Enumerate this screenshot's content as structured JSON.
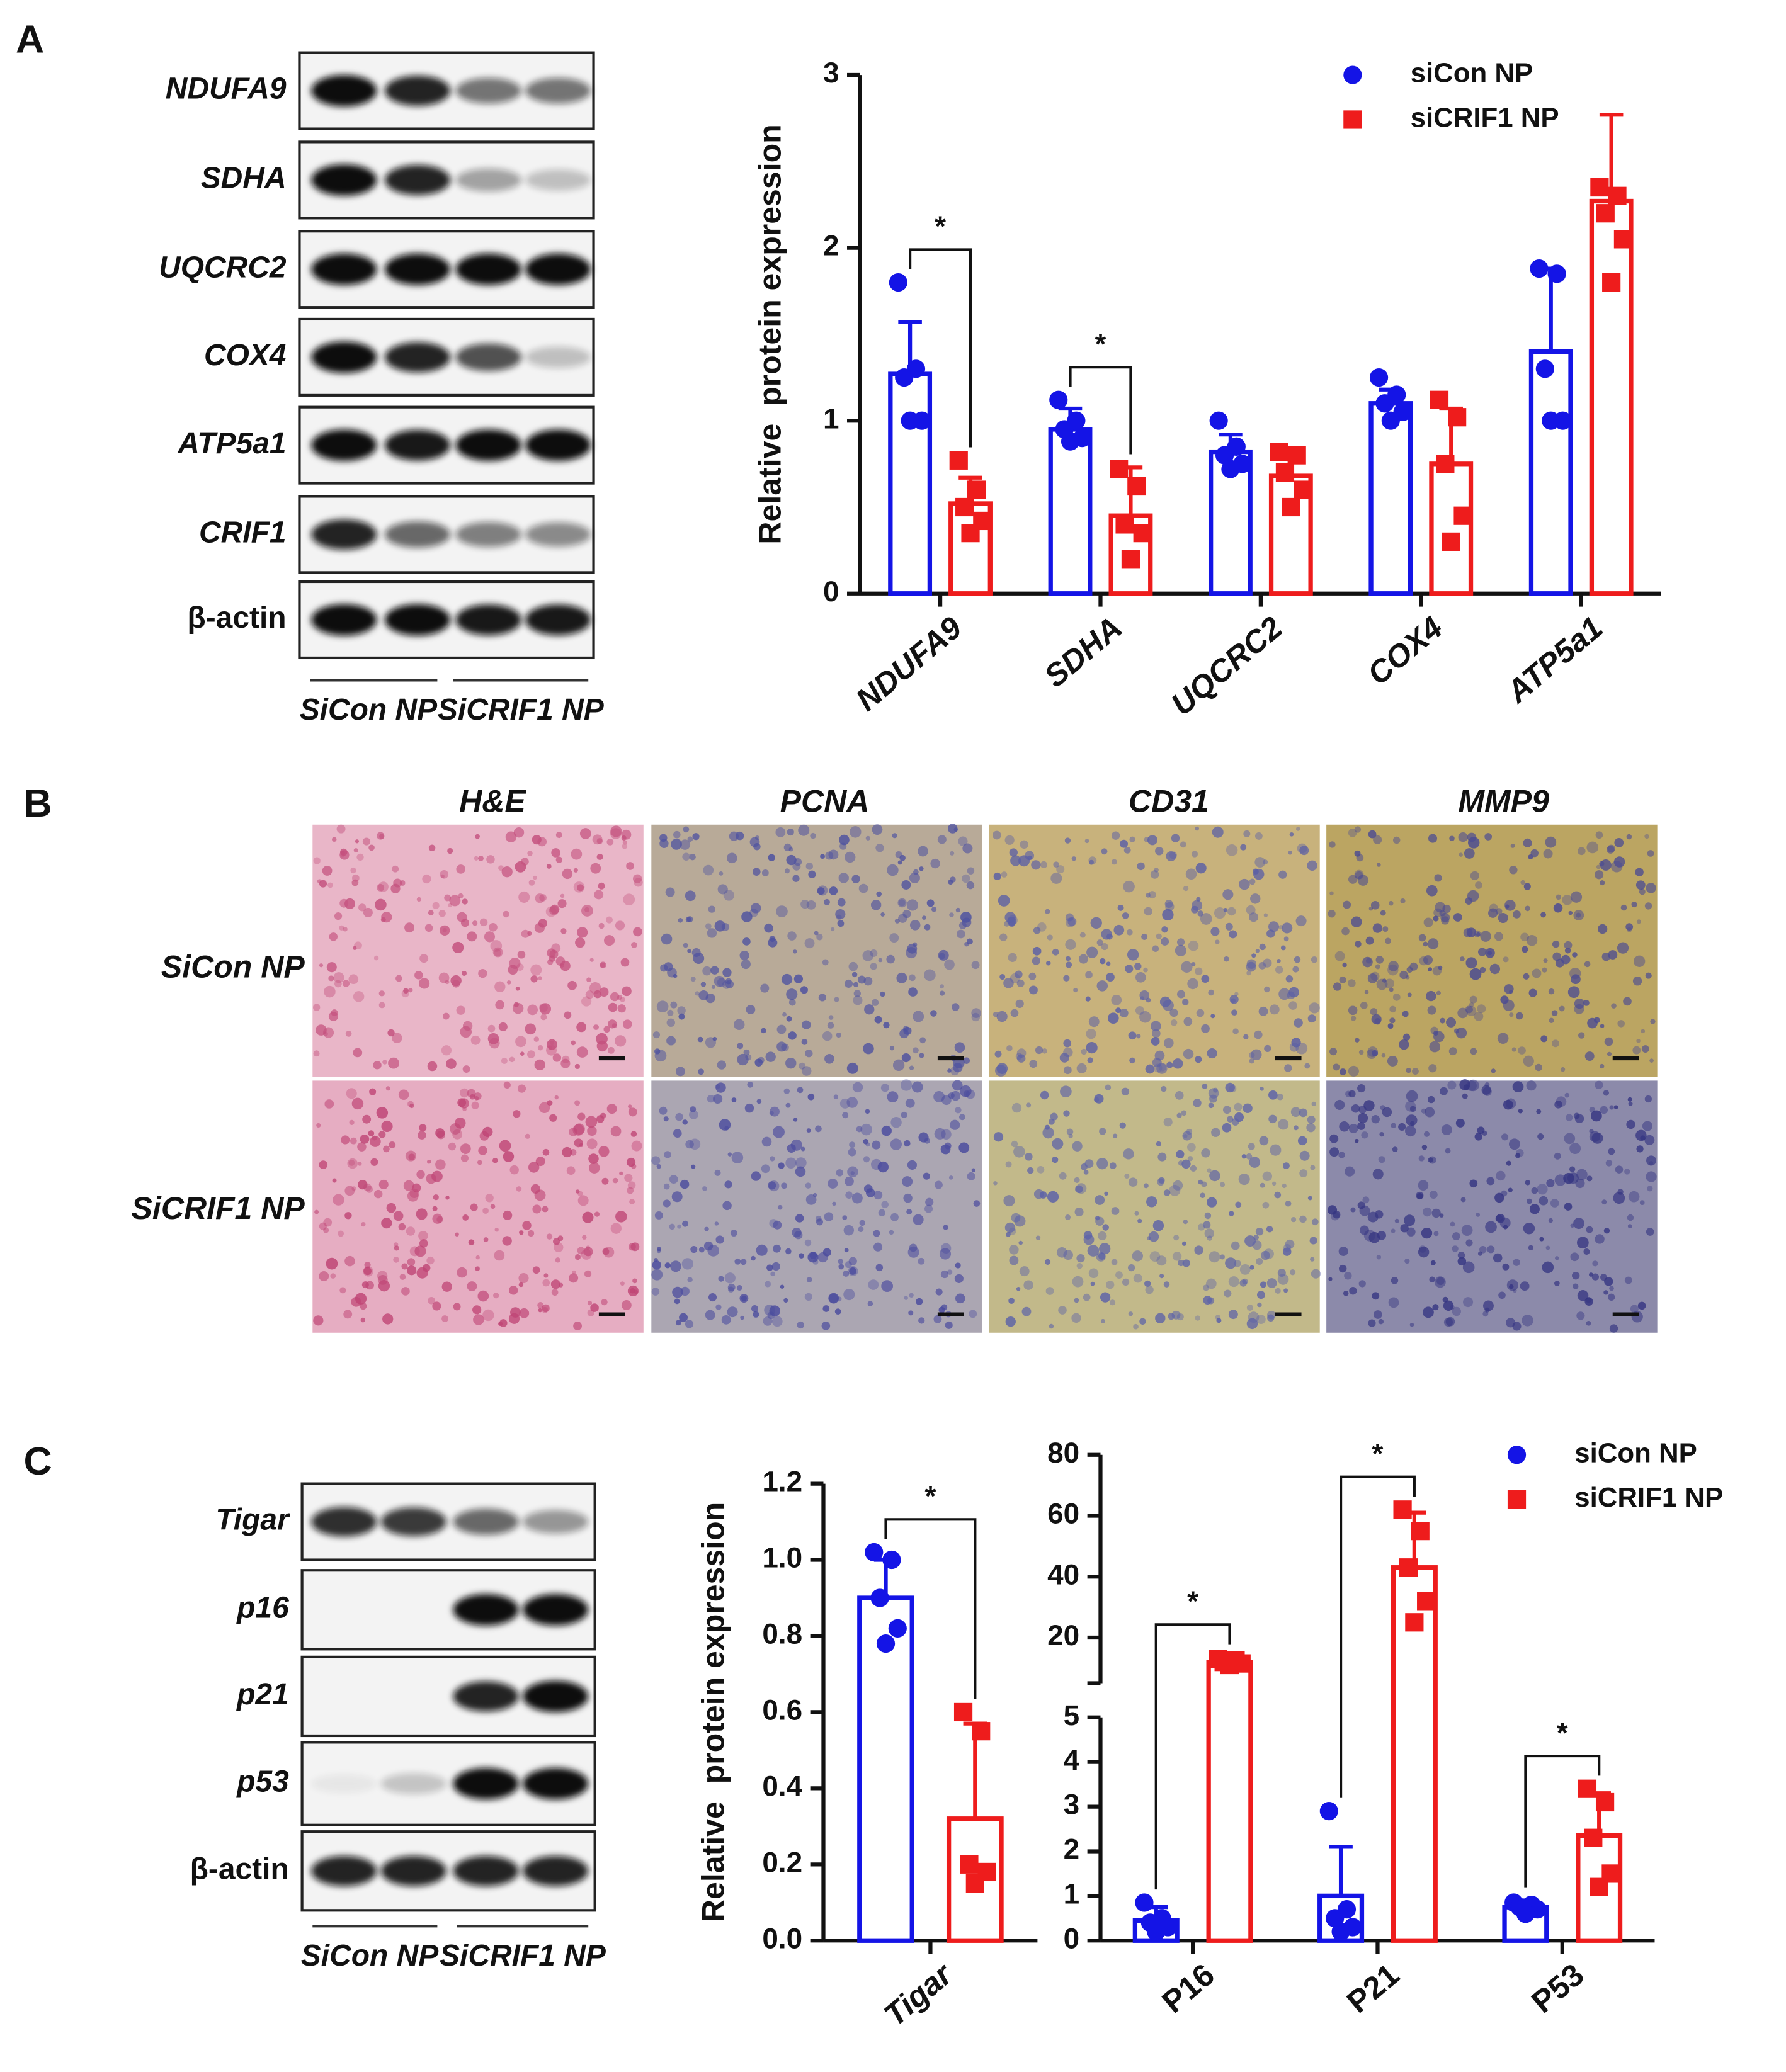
{
  "panel_labels": [
    "A",
    "B",
    "C"
  ],
  "blot_a": {
    "rows": [
      "NDUFA9",
      "SDHA",
      "UQCRC2",
      "COX4",
      "ATP5a1",
      "CRIF1",
      "β-actin"
    ],
    "groups": [
      "SiCon NP",
      "SiCRIF1 NP"
    ]
  },
  "histology": {
    "columns": [
      "H&E",
      "PCNA",
      "CD31",
      "MMP9"
    ],
    "rows": [
      "SiCon NP",
      "SiCRIF1 NP"
    ]
  },
  "blot_c": {
    "rows": [
      "Tigar",
      "p16",
      "p21",
      "p53",
      "β-actin"
    ],
    "groups": [
      "SiCon NP",
      "SiCRIF1 NP"
    ]
  },
  "chart_data": [
    {
      "type": "bar",
      "ylabel": "Relative  protein expression",
      "categories": [
        "NDUFA9",
        "SDHA",
        "UQCRC2",
        "COX4",
        "ATP5a1"
      ],
      "ylim": [
        0,
        3
      ],
      "yticks": [
        0,
        1,
        2,
        3
      ],
      "legend": "top-right",
      "series": [
        {
          "name": "siCon NP",
          "color": "#1414e6",
          "marker": "circle",
          "values": [
            1.27,
            0.95,
            0.82,
            1.1,
            1.4
          ],
          "errors": [
            0.3,
            0.12,
            0.1,
            0.08,
            0.48
          ],
          "points": [
            [
              1.8,
              1.3,
              1.25,
              1.0,
              1.0
            ],
            [
              1.12,
              1.0,
              0.95,
              0.9,
              0.88
            ],
            [
              1.0,
              0.85,
              0.8,
              0.75,
              0.72
            ],
            [
              1.25,
              1.15,
              1.1,
              1.05,
              1.0
            ],
            [
              1.88,
              1.85,
              1.3,
              1.0,
              1.0
            ]
          ]
        },
        {
          "name": "siCRIF1 NP",
          "color": "#ee1c1c",
          "marker": "square",
          "values": [
            0.52,
            0.45,
            0.68,
            0.75,
            2.27
          ],
          "errors": [
            0.15,
            0.28,
            0.12,
            0.32,
            0.5
          ],
          "points": [
            [
              0.77,
              0.6,
              0.5,
              0.42,
              0.35
            ],
            [
              0.72,
              0.62,
              0.4,
              0.35,
              0.2
            ],
            [
              0.82,
              0.8,
              0.7,
              0.6,
              0.5
            ],
            [
              1.12,
              1.02,
              0.75,
              0.45,
              0.3
            ],
            [
              2.35,
              2.3,
              2.2,
              2.05,
              1.8
            ]
          ]
        }
      ],
      "annotations": [
        {
          "text": "*",
          "category": "NDUFA9"
        },
        {
          "text": "*",
          "category": "SDHA"
        }
      ]
    },
    {
      "type": "bar",
      "ylabel": "Relative  protein expression",
      "categories": [
        "Tigar"
      ],
      "ylim": [
        0,
        1.2
      ],
      "yticks": [
        {
          "value": 0,
          "label": "0.0"
        },
        0.2,
        0.4,
        0.6,
        0.8,
        {
          "value": 1,
          "label": "1.0"
        },
        1.2
      ],
      "series": [
        {
          "color": "#1414e6",
          "marker": "circle",
          "values": [
            0.9
          ],
          "errors": [
            0.1
          ],
          "points": [
            [
              1.02,
              1.0,
              0.9,
              0.82,
              0.78
            ]
          ]
        },
        {
          "color": "#ee1c1c",
          "marker": "square",
          "values": [
            0.32
          ],
          "errors": [
            0.25
          ],
          "points": [
            [
              0.6,
              0.55,
              0.2,
              0.18,
              0.15
            ]
          ]
        }
      ],
      "annotations": [
        {
          "text": "*",
          "category": "Tigar"
        }
      ]
    },
    {
      "type": "bar",
      "categories": [
        "P16",
        "P21",
        "P53"
      ],
      "ylim": [
        0,
        80
      ],
      "ybreak": 5,
      "yticks": [
        0,
        1,
        2,
        3,
        4,
        5,
        20,
        40,
        60,
        80
      ],
      "legend": "top-right",
      "series": [
        {
          "name": "siCon NP",
          "color": "#1414e6",
          "marker": "circle",
          "values": [
            0.45,
            1.0,
            0.75
          ],
          "errors": [
            0.3,
            1.1,
            0.15
          ],
          "points": [
            [
              0.85,
              0.5,
              0.4,
              0.3,
              0.2
            ],
            [
              2.9,
              0.7,
              0.5,
              0.3,
              0.2
            ],
            [
              0.85,
              0.8,
              0.75,
              0.7,
              0.6
            ]
          ]
        },
        {
          "name": "siCRIF1 NP",
          "color": "#ee1c1c",
          "marker": "square",
          "values": [
            12,
            43,
            2.35
          ],
          "errors": [
            1.5,
            18,
            0.95
          ],
          "points": [
            [
              13,
              12.5,
              12,
              11.5,
              11
            ],
            [
              62,
              55,
              43,
              32,
              25
            ],
            [
              3.4,
              3.1,
              2.3,
              1.5,
              1.2
            ]
          ]
        }
      ],
      "annotations": [
        {
          "text": "*",
          "category": "P16"
        },
        {
          "text": "*",
          "category": "P21"
        },
        {
          "text": "*",
          "category": "P53"
        }
      ]
    }
  ]
}
